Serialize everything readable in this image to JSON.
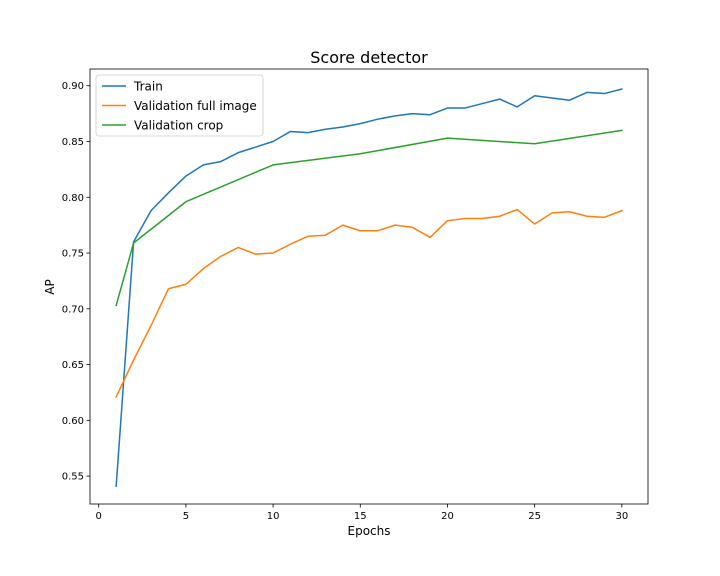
{
  "chart_data": {
    "type": "line",
    "title": "Score detector",
    "xlabel": "Epochs",
    "ylabel": "AP",
    "xlim": [
      -0.5,
      31.5
    ],
    "ylim": [
      0.525,
      0.915
    ],
    "xticks": [
      0,
      5,
      10,
      15,
      20,
      25,
      30
    ],
    "yticks": [
      0.55,
      0.6,
      0.65,
      0.7,
      0.75,
      0.8,
      0.85,
      0.9
    ],
    "ytick_labels": [
      "0.55",
      "0.60",
      "0.65",
      "0.70",
      "0.75",
      "0.80",
      "0.85",
      "0.90"
    ],
    "grid": false,
    "legend_position": "top-left",
    "series": [
      {
        "name": "Train",
        "color": "#1f77b4",
        "x": [
          1,
          2,
          3,
          4,
          5,
          6,
          7,
          8,
          9,
          10,
          11,
          12,
          13,
          14,
          15,
          16,
          17,
          18,
          19,
          20,
          21,
          22,
          23,
          24,
          25,
          26,
          27,
          28,
          29,
          30
        ],
        "values": [
          0.541,
          0.76,
          0.788,
          0.804,
          0.819,
          0.829,
          0.832,
          0.84,
          0.845,
          0.85,
          0.859,
          0.858,
          0.861,
          0.863,
          0.866,
          0.87,
          0.873,
          0.875,
          0.874,
          0.88,
          0.88,
          0.884,
          0.888,
          0.881,
          0.891,
          0.889,
          0.887,
          0.894,
          0.893,
          0.897
        ]
      },
      {
        "name": "Validation full image",
        "color": "#ff7f0e",
        "x": [
          1,
          2,
          3,
          4,
          5,
          6,
          7,
          8,
          9,
          10,
          11,
          12,
          13,
          14,
          15,
          16,
          17,
          18,
          19,
          20,
          21,
          22,
          23,
          24,
          25,
          26,
          27,
          28,
          29,
          30
        ],
        "values": [
          0.621,
          0.654,
          0.685,
          0.718,
          0.722,
          0.736,
          0.747,
          0.755,
          0.749,
          0.75,
          0.758,
          0.765,
          0.766,
          0.775,
          0.77,
          0.77,
          0.775,
          0.773,
          0.764,
          0.779,
          0.781,
          0.781,
          0.783,
          0.789,
          0.776,
          0.786,
          0.787,
          0.783,
          0.782,
          0.788
        ]
      },
      {
        "name": "Validation crop",
        "color": "#2ca02c",
        "x": [
          1,
          2,
          5,
          10,
          15,
          20,
          25,
          30
        ],
        "values": [
          0.703,
          0.759,
          0.796,
          0.829,
          0.839,
          0.853,
          0.848,
          0.86
        ]
      }
    ]
  }
}
